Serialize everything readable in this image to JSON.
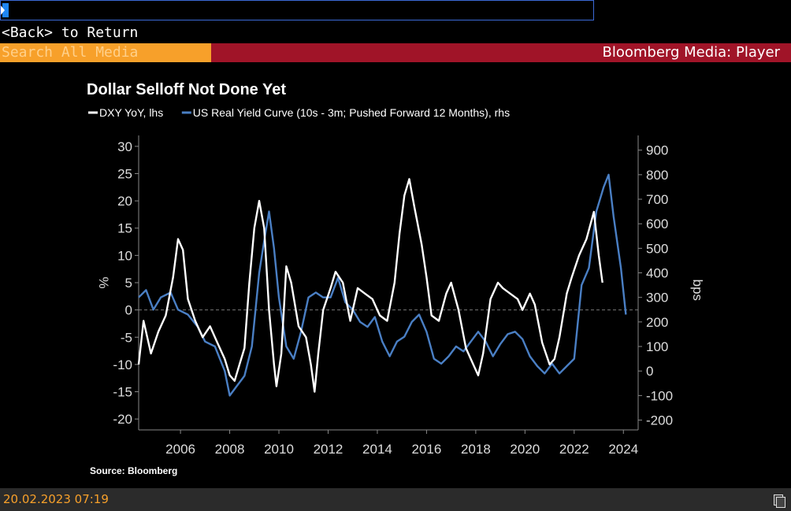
{
  "header": {
    "back_text": "<Back> to Return",
    "search_placeholder": "Search All Media",
    "app_title": "Bloomberg Media: Player"
  },
  "footer": {
    "timestamp": "20.02.2023 07:19",
    "icon": "copy-icon"
  },
  "colors": {
    "dxy": "#ffffff",
    "real_yield": "#4a7fc4",
    "search_bg": "#f7a02a",
    "title_bg": "#a01428"
  },
  "chart_data": {
    "type": "line",
    "title": "Dollar Selloff Not Done Yet",
    "legend": [
      {
        "label": "DXY YoY, lhs",
        "color": "#ffffff"
      },
      {
        "label": "US Real Yield Curve (10s - 3m; Pushed Forward 12 Months), rhs",
        "color": "#4a7fc4"
      }
    ],
    "source": "Source: Bloomberg",
    "ylabel_left": "%",
    "ylabel_right": "bps",
    "xlim": [
      2004.3,
      2024.6
    ],
    "ylim_left": [
      -22,
      32
    ],
    "ylim_right": [
      -240,
      960
    ],
    "x_ticks": [
      2006,
      2008,
      2010,
      2012,
      2014,
      2016,
      2018,
      2020,
      2022,
      2024
    ],
    "y_ticks_left": [
      30,
      25,
      20,
      15,
      10,
      5,
      0,
      -5,
      -10,
      -15,
      -20
    ],
    "y_ticks_right": [
      900,
      800,
      700,
      600,
      500,
      400,
      300,
      200,
      100,
      0,
      -100,
      -200
    ],
    "reference_line": {
      "axis": "left",
      "value": 0,
      "style": "dashed"
    },
    "series": [
      {
        "name": "DXY YoY, lhs",
        "axis": "left",
        "color": "#ffffff",
        "points": [
          [
            2004.3,
            -10
          ],
          [
            2004.5,
            -2
          ],
          [
            2004.8,
            -8
          ],
          [
            2005.1,
            -4
          ],
          [
            2005.4,
            -1
          ],
          [
            2005.7,
            6
          ],
          [
            2005.9,
            13
          ],
          [
            2006.1,
            11
          ],
          [
            2006.3,
            2
          ],
          [
            2006.6,
            -2
          ],
          [
            2006.9,
            -5
          ],
          [
            2007.2,
            -3
          ],
          [
            2007.5,
            -6
          ],
          [
            2007.8,
            -9
          ],
          [
            2008.0,
            -12
          ],
          [
            2008.2,
            -13
          ],
          [
            2008.4,
            -10
          ],
          [
            2008.6,
            -7
          ],
          [
            2008.8,
            5
          ],
          [
            2009.0,
            15
          ],
          [
            2009.2,
            20
          ],
          [
            2009.4,
            15
          ],
          [
            2009.6,
            0
          ],
          [
            2009.8,
            -10
          ],
          [
            2009.9,
            -14
          ],
          [
            2010.1,
            -8
          ],
          [
            2010.3,
            8
          ],
          [
            2010.5,
            5
          ],
          [
            2010.8,
            -3
          ],
          [
            2011.1,
            -5
          ],
          [
            2011.3,
            -10
          ],
          [
            2011.45,
            -15
          ],
          [
            2011.6,
            -8
          ],
          [
            2011.8,
            0
          ],
          [
            2012.1,
            4
          ],
          [
            2012.3,
            7
          ],
          [
            2012.6,
            5
          ],
          [
            2012.9,
            -2
          ],
          [
            2013.2,
            4
          ],
          [
            2013.5,
            3
          ],
          [
            2013.8,
            2
          ],
          [
            2014.1,
            -1
          ],
          [
            2014.4,
            -2
          ],
          [
            2014.7,
            5
          ],
          [
            2014.9,
            14
          ],
          [
            2015.1,
            21
          ],
          [
            2015.3,
            24
          ],
          [
            2015.5,
            19
          ],
          [
            2015.8,
            12
          ],
          [
            2016.0,
            6
          ],
          [
            2016.2,
            -1
          ],
          [
            2016.5,
            -2
          ],
          [
            2016.8,
            3
          ],
          [
            2017.0,
            5
          ],
          [
            2017.3,
            0
          ],
          [
            2017.6,
            -7
          ],
          [
            2017.9,
            -10
          ],
          [
            2018.1,
            -12
          ],
          [
            2018.3,
            -8
          ],
          [
            2018.6,
            2
          ],
          [
            2018.9,
            5
          ],
          [
            2019.1,
            4
          ],
          [
            2019.4,
            3
          ],
          [
            2019.7,
            2
          ],
          [
            2019.9,
            0
          ],
          [
            2020.2,
            3
          ],
          [
            2020.4,
            1
          ],
          [
            2020.7,
            -6
          ],
          [
            2021.0,
            -10
          ],
          [
            2021.2,
            -9
          ],
          [
            2021.4,
            -5
          ],
          [
            2021.7,
            3
          ],
          [
            2021.9,
            6
          ],
          [
            2022.2,
            10
          ],
          [
            2022.5,
            13
          ],
          [
            2022.8,
            18
          ],
          [
            2023.0,
            10
          ],
          [
            2023.15,
            5
          ]
        ]
      },
      {
        "name": "US Real Yield Curve (10s - 3m; Pushed Forward 12 Months), rhs",
        "axis": "right",
        "color": "#4a7fc4",
        "points": [
          [
            2004.3,
            300
          ],
          [
            2004.6,
            330
          ],
          [
            2004.9,
            250
          ],
          [
            2005.2,
            300
          ],
          [
            2005.6,
            320
          ],
          [
            2005.9,
            250
          ],
          [
            2006.3,
            230
          ],
          [
            2006.7,
            180
          ],
          [
            2007.0,
            120
          ],
          [
            2007.4,
            100
          ],
          [
            2007.8,
            0
          ],
          [
            2008.0,
            -100
          ],
          [
            2008.3,
            -60
          ],
          [
            2008.6,
            -20
          ],
          [
            2008.9,
            100
          ],
          [
            2009.2,
            400
          ],
          [
            2009.4,
            530
          ],
          [
            2009.6,
            650
          ],
          [
            2009.8,
            500
          ],
          [
            2010.0,
            300
          ],
          [
            2010.3,
            100
          ],
          [
            2010.6,
            50
          ],
          [
            2010.9,
            160
          ],
          [
            2011.2,
            300
          ],
          [
            2011.5,
            320
          ],
          [
            2011.8,
            300
          ],
          [
            2012.1,
            300
          ],
          [
            2012.4,
            380
          ],
          [
            2012.7,
            280
          ],
          [
            2013.0,
            250
          ],
          [
            2013.3,
            200
          ],
          [
            2013.6,
            180
          ],
          [
            2013.9,
            220
          ],
          [
            2014.2,
            120
          ],
          [
            2014.5,
            60
          ],
          [
            2014.8,
            120
          ],
          [
            2015.1,
            140
          ],
          [
            2015.4,
            200
          ],
          [
            2015.7,
            230
          ],
          [
            2016.0,
            160
          ],
          [
            2016.3,
            50
          ],
          [
            2016.6,
            30
          ],
          [
            2016.9,
            60
          ],
          [
            2017.2,
            100
          ],
          [
            2017.5,
            80
          ],
          [
            2017.8,
            120
          ],
          [
            2018.1,
            160
          ],
          [
            2018.4,
            120
          ],
          [
            2018.7,
            60
          ],
          [
            2019.0,
            110
          ],
          [
            2019.3,
            150
          ],
          [
            2019.6,
            160
          ],
          [
            2019.9,
            130
          ],
          [
            2020.2,
            60
          ],
          [
            2020.5,
            20
          ],
          [
            2020.8,
            -10
          ],
          [
            2021.1,
            30
          ],
          [
            2021.4,
            -10
          ],
          [
            2021.7,
            20
          ],
          [
            2022.0,
            50
          ],
          [
            2022.3,
            350
          ],
          [
            2022.6,
            420
          ],
          [
            2022.9,
            650
          ],
          [
            2023.2,
            750
          ],
          [
            2023.4,
            800
          ],
          [
            2023.6,
            630
          ],
          [
            2023.9,
            420
          ],
          [
            2024.1,
            230
          ]
        ]
      }
    ]
  }
}
